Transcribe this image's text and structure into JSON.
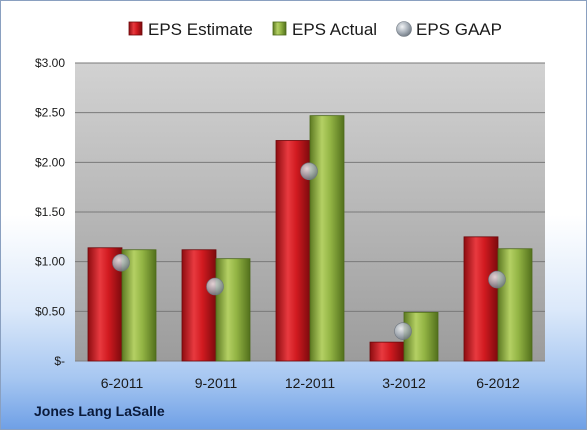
{
  "company_label": "Jones Lang LaSalle",
  "chart_data": {
    "type": "bar",
    "categories": [
      "6-2011",
      "9-2011",
      "12-2011",
      "3-2012",
      "6-2012"
    ],
    "series": [
      {
        "name": "EPS Estimate",
        "kind": "bar",
        "color": "#c8151b",
        "values": [
          1.14,
          1.12,
          2.22,
          0.19,
          1.25
        ]
      },
      {
        "name": "EPS Actual",
        "kind": "bar",
        "color": "#8aaa3c",
        "values": [
          1.12,
          1.03,
          2.47,
          0.49,
          1.13
        ]
      },
      {
        "name": "EPS GAAP",
        "kind": "marker",
        "color": "#9aa3ad",
        "values": [
          0.99,
          0.75,
          1.91,
          0.3,
          0.82
        ]
      }
    ],
    "ylim": [
      0,
      3.0
    ],
    "yticks": [
      0,
      0.5,
      1.0,
      1.5,
      2.0,
      2.5,
      3.0
    ],
    "ytick_labels": [
      "$-",
      "$0.50",
      "$1.00",
      "$1.50",
      "$2.00",
      "$2.50",
      "$3.00"
    ],
    "grid": true,
    "legend_position": "top"
  }
}
